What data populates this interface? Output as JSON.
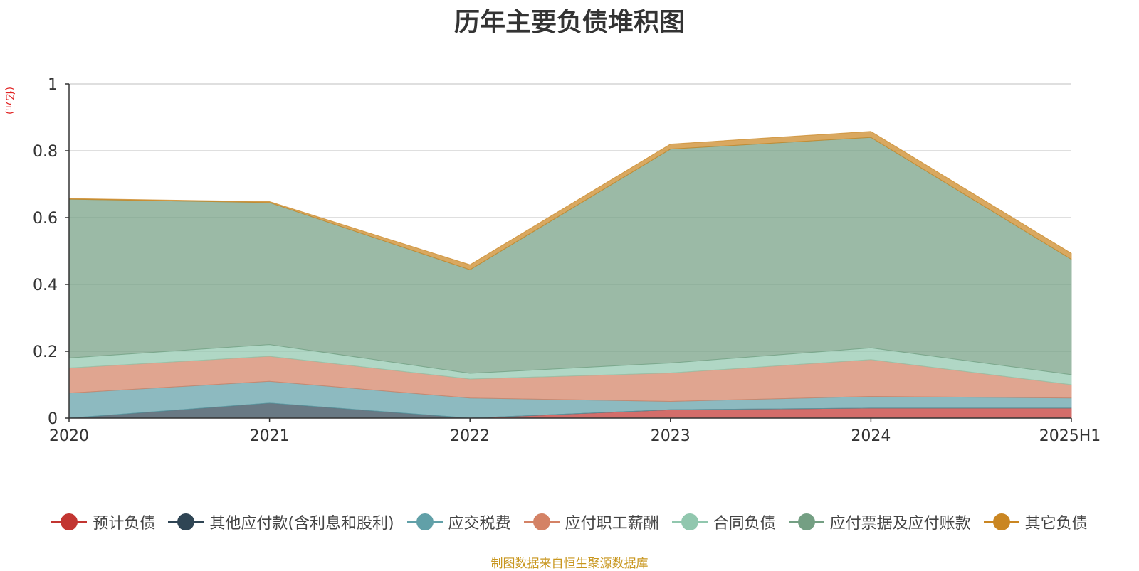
{
  "title": "历年主要负债堆积图",
  "unit_label": "(亿元)",
  "source_text": "制图数据来自恒生聚源数据库",
  "chart_data": {
    "type": "area",
    "stacked": true,
    "categories": [
      "2020",
      "2021",
      "2022",
      "2023",
      "2024",
      "2025H1"
    ],
    "ylim": [
      0,
      1
    ],
    "yticks": [
      0,
      0.2,
      0.4,
      0.6,
      0.8,
      1
    ],
    "ytick_labels": [
      "0",
      "0.2",
      "0.4",
      "0.6",
      "0.8",
      "1"
    ],
    "grid": true,
    "legend_position": "bottom",
    "series": [
      {
        "name": "预计负债",
        "color": "#c23531",
        "values": [
          0,
          0,
          0,
          0.025,
          0.03,
          0.03
        ]
      },
      {
        "name": "其他应付款(含利息和股利)",
        "color": "#2f4554",
        "values": [
          0,
          0.045,
          0,
          0,
          0,
          0
        ]
      },
      {
        "name": "应交税费",
        "color": "#61a0a8",
        "values": [
          0.075,
          0.065,
          0.06,
          0.025,
          0.035,
          0.03
        ]
      },
      {
        "name": "应付职工薪酬",
        "color": "#d48265",
        "values": [
          0.075,
          0.075,
          0.057,
          0.085,
          0.11,
          0.04
        ]
      },
      {
        "name": "合同负债",
        "color": "#91c7ae",
        "values": [
          0.03,
          0.035,
          0.017,
          0.03,
          0.035,
          0.03
        ]
      },
      {
        "name": "应付票据及应付账款",
        "color": "#749f83",
        "values": [
          0.475,
          0.425,
          0.31,
          0.64,
          0.63,
          0.345
        ]
      },
      {
        "name": "其它负债",
        "color": "#ca8622",
        "values": [
          0.002,
          0.003,
          0.015,
          0.015,
          0.018,
          0.018
        ]
      }
    ]
  }
}
